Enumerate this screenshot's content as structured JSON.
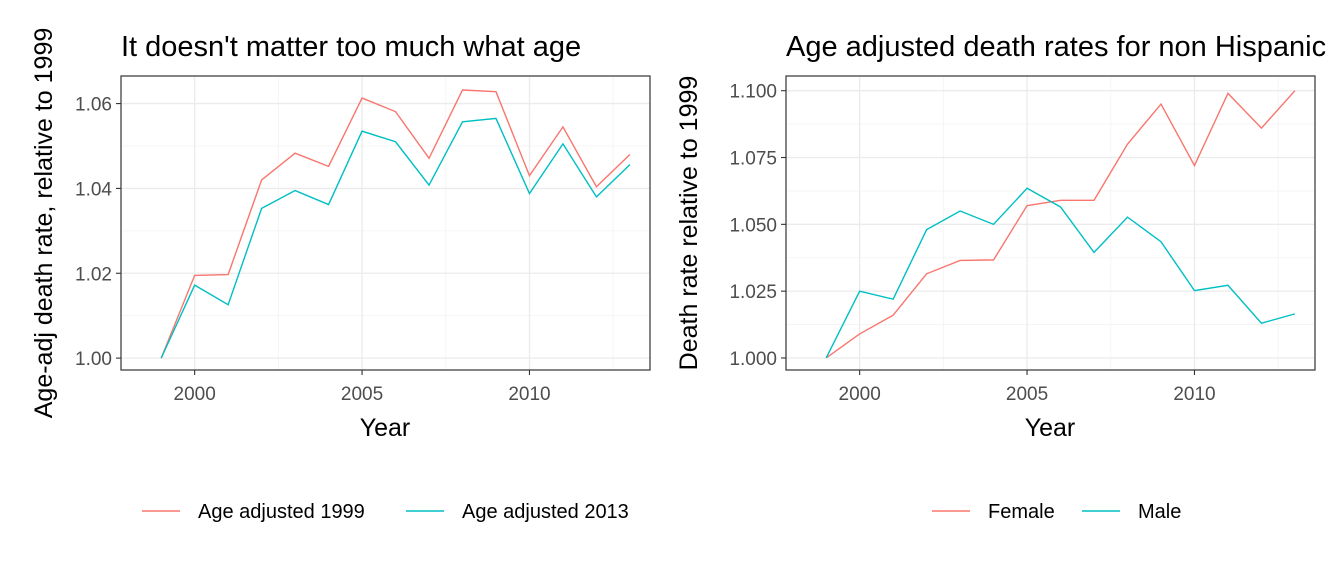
{
  "chart_data": [
    {
      "type": "line",
      "title": "It doesn't matter too much what age",
      "xlabel": "Year",
      "ylabel": "Age-adj death rate, relative to 1999",
      "x": [
        1999,
        2000,
        2001,
        2002,
        2003,
        2004,
        2005,
        2006,
        2007,
        2008,
        2009,
        2010,
        2011,
        2012,
        2013
      ],
      "xlim": [
        1997.8,
        2013.6
      ],
      "ylim": [
        0.9972,
        1.0665
      ],
      "xticks": [
        2000,
        2005,
        2010
      ],
      "xtick_labels": [
        "2000",
        "2005",
        "2010"
      ],
      "yticks": [
        1.0,
        1.02,
        1.04,
        1.06
      ],
      "ytick_labels": [
        "1.00",
        "1.02",
        "1.04",
        "1.06"
      ],
      "grid": true,
      "legend_position": "bottom",
      "series": [
        {
          "name": "Age adjusted 1999",
          "color": "#F8766D",
          "values": [
            1.0,
            1.0195,
            1.0197,
            1.042,
            1.0483,
            1.0452,
            1.0613,
            1.0581,
            1.0471,
            1.0632,
            1.0628,
            1.043,
            1.0545,
            1.0404,
            1.048
          ]
        },
        {
          "name": "Age adjusted 2013",
          "color": "#00BFC4",
          "values": [
            1.0,
            1.0172,
            1.0126,
            1.0353,
            1.0395,
            1.0362,
            1.0535,
            1.051,
            1.0408,
            1.0557,
            1.0565,
            1.0388,
            1.0505,
            1.038,
            1.0456
          ]
        }
      ]
    },
    {
      "type": "line",
      "title": "Age adjusted death rates for non Hispanic",
      "xlabel": "Year",
      "ylabel": "Death rate relative to 1999",
      "x": [
        1999,
        2000,
        2001,
        2002,
        2003,
        2004,
        2005,
        2006,
        2007,
        2008,
        2009,
        2010,
        2011,
        2012,
        2013
      ],
      "xlim": [
        1997.8,
        2013.6
      ],
      "ylim": [
        0.9955,
        1.1055
      ],
      "xticks": [
        2000,
        2005,
        2010
      ],
      "xtick_labels": [
        "2000",
        "2005",
        "2010"
      ],
      "yticks": [
        1.0,
        1.025,
        1.05,
        1.075,
        1.1
      ],
      "ytick_labels": [
        "1.000",
        "1.025",
        "1.050",
        "1.075",
        "1.100"
      ],
      "grid": true,
      "legend_position": "bottom",
      "series": [
        {
          "name": "Female",
          "color": "#F8766D",
          "values": [
            1.0,
            1.009,
            1.016,
            1.0315,
            1.0365,
            1.0367,
            1.057,
            1.059,
            1.059,
            1.08,
            1.095,
            1.072,
            1.099,
            1.086,
            1.1
          ]
        },
        {
          "name": "Male",
          "color": "#00BFC4",
          "values": [
            1.0,
            1.025,
            1.022,
            1.048,
            1.055,
            1.05,
            1.0635,
            1.0565,
            1.0395,
            1.0527,
            1.0435,
            1.0252,
            1.0272,
            1.013,
            1.0165
          ]
        }
      ]
    }
  ]
}
